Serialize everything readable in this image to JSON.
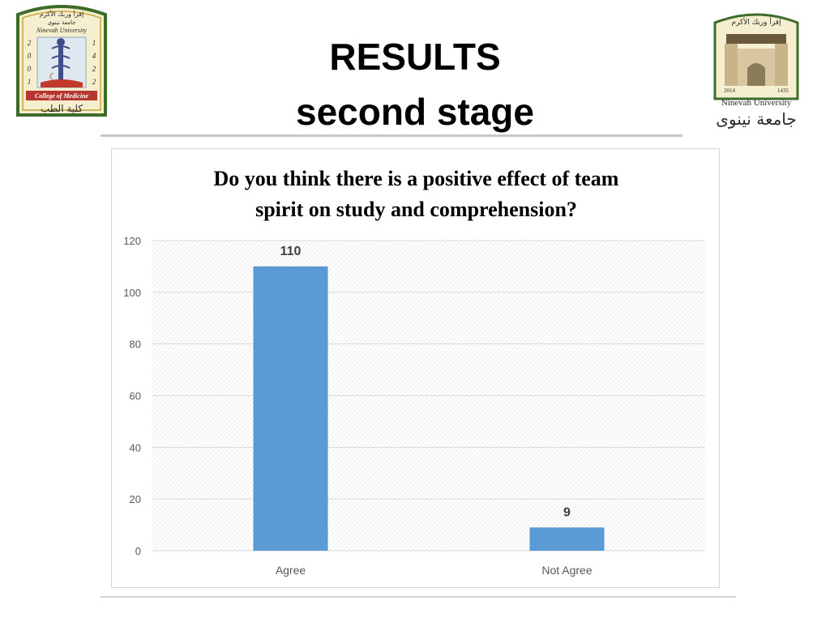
{
  "slide": {
    "title_line1": "RESULTS",
    "title_line2": "second stage"
  },
  "logos": {
    "left": {
      "arabic_top": "إقرأ وربك الأكرم",
      "arabic_sub": "جامعة نينوى",
      "english": "Ninevah University",
      "years_left": [
        "2",
        "0",
        "0",
        "1"
      ],
      "years_right": [
        "1",
        "4",
        "2",
        "2"
      ],
      "college": "College of Medicine",
      "arabic_bottom": "كلية الطب"
    },
    "right": {
      "arabic_top": "إقرأ وربك الأكرم",
      "year_left": "2014",
      "year_right": "1435",
      "english": "Ninevah University",
      "arabic_bottom": "جامعة نينوى"
    }
  },
  "colors": {
    "bar": "#5b9bd5",
    "grid": "#d9d9d9",
    "plot_hatch": "#e6e6e6",
    "axis_text": "#595959"
  },
  "chart_data": {
    "type": "bar",
    "title": "Do you think there is a positive effect of team spirit on study and comprehension?",
    "title_lines": [
      "Do you think there is a positive effect of team",
      "spirit on study and comprehension?"
    ],
    "categories": [
      "Agree",
      "Not Agree"
    ],
    "values": [
      110,
      9
    ],
    "data_labels": [
      "110",
      "9"
    ],
    "xlabel": "",
    "ylabel": "",
    "ylim": [
      0,
      120
    ],
    "yticks": [
      0,
      20,
      40,
      60,
      80,
      100,
      120
    ],
    "ytick_labels": [
      "0",
      "20",
      "40",
      "60",
      "80",
      "100",
      "120"
    ],
    "grid": true,
    "legend": "none"
  }
}
